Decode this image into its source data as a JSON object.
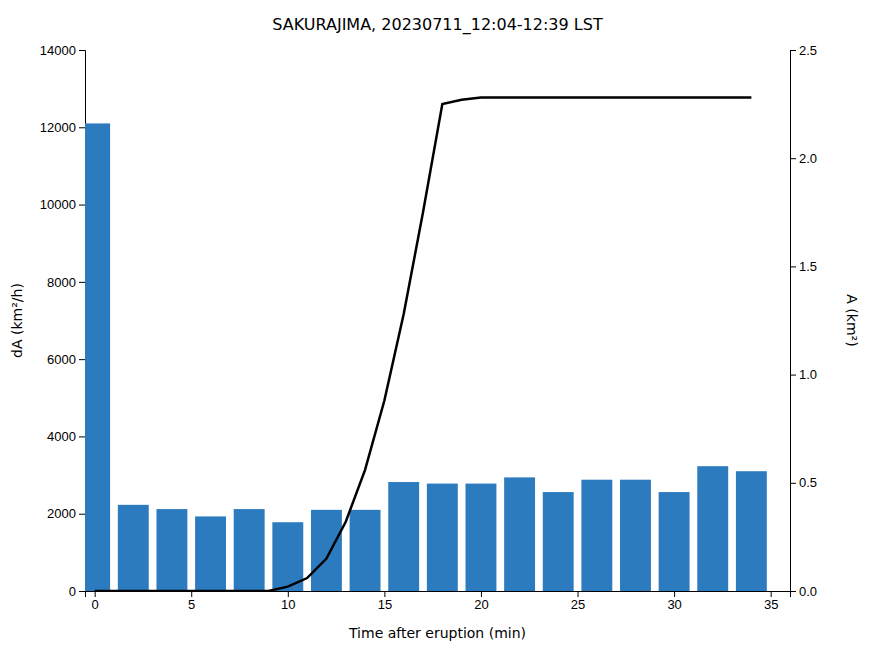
{
  "chart_data": {
    "type": "bar",
    "title": "SAKURAJIMA, 20230711_12:04-12:39 LST",
    "xlabel": "Time after eruption (min)",
    "ylabel": "dA (km²/h)",
    "y2label": "A (km²)",
    "series": [
      {
        "type": "bar",
        "color": "#2d7bbf",
        "x": [
          0,
          2,
          4,
          6,
          8,
          10,
          12,
          14,
          16,
          18,
          20,
          22,
          24,
          26,
          28,
          30,
          32,
          34
        ],
        "values": [
          12100,
          2230,
          2120,
          1930,
          2120,
          1780,
          2100,
          2100,
          2820,
          2780,
          2780,
          2940,
          2560,
          2880,
          2880,
          2560,
          3230,
          3100
        ]
      },
      {
        "type": "line",
        "axis": "y2",
        "color": "#000000",
        "x": [
          0,
          2,
          4,
          6,
          8,
          9,
          10,
          11,
          12,
          13,
          14,
          15,
          16,
          17,
          18,
          19,
          20,
          22,
          24,
          26,
          28,
          30,
          32,
          34
        ],
        "values": [
          0,
          0,
          0,
          0,
          0,
          0.0,
          0.02,
          0.06,
          0.15,
          0.32,
          0.56,
          0.88,
          1.28,
          1.75,
          2.25,
          2.27,
          2.28,
          2.28,
          2.28,
          2.28,
          2.28,
          2.28,
          2.28,
          2.28
        ]
      }
    ],
    "xlim": [
      -0.5,
      36
    ],
    "xticks": [
      0,
      5,
      10,
      15,
      20,
      25,
      30,
      35
    ],
    "ylim": [
      0,
      14000
    ],
    "yticks": [
      0,
      2000,
      4000,
      6000,
      8000,
      10000,
      12000,
      14000
    ],
    "y2lim": [
      0,
      2.5
    ],
    "y2ticks": [
      {
        "value": 0,
        "label": "0.0"
      },
      0.5,
      {
        "value": 1,
        "label": "1.0"
      },
      1.5,
      {
        "value": 2,
        "label": "2.0"
      },
      2.5
    ],
    "grid": false
  }
}
